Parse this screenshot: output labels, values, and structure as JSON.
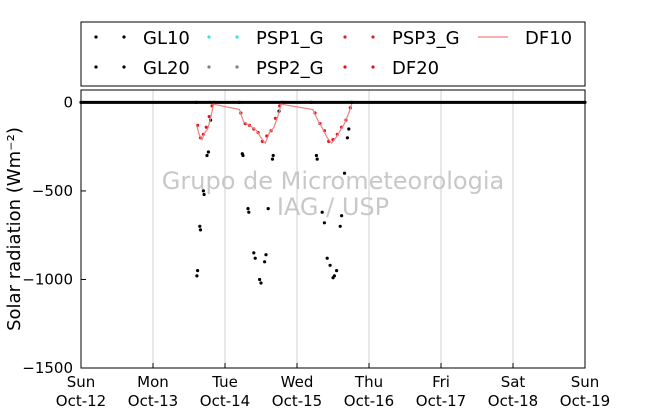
{
  "chart_data": {
    "type": "scatter",
    "ylabel": "Solar radiation (Wm⁻²)",
    "ylim": [
      -1500,
      70
    ],
    "xlim_days": [
      12,
      19
    ],
    "yticks": [
      0,
      -500,
      -1000,
      -1500
    ],
    "grid": "vertical",
    "legend_placement": "top (outside plot)",
    "x_tick_labels": [
      [
        "Sun",
        "Oct-12"
      ],
      [
        "Mon",
        "Oct-13"
      ],
      [
        "Tue",
        "Oct-14"
      ],
      [
        "Wed",
        "Oct-15"
      ],
      [
        "Thu",
        "Oct-16"
      ],
      [
        "Fri",
        "Oct-17"
      ],
      [
        "Sat",
        "Oct-18"
      ],
      [
        "Sun",
        "Oct-19"
      ]
    ],
    "watermark": [
      "Grupo de Micrometeorologia",
      "IAG / USP"
    ],
    "series": [
      {
        "name": "GL10",
        "style": "dots",
        "color": "#000000",
        "points": [
          [
            12.0,
            0
          ],
          [
            13.6,
            0
          ],
          [
            13.62,
            -950
          ],
          [
            13.65,
            -700
          ],
          [
            13.7,
            -500
          ],
          [
            13.75,
            -300
          ],
          [
            13.8,
            -100
          ],
          [
            13.85,
            0
          ],
          [
            14.2,
            0
          ],
          [
            14.25,
            -300
          ],
          [
            14.32,
            -600
          ],
          [
            14.4,
            -850
          ],
          [
            14.48,
            -1000
          ],
          [
            14.55,
            -900
          ],
          [
            14.6,
            -600
          ],
          [
            14.67,
            -300
          ],
          [
            14.75,
            -50
          ],
          [
            14.8,
            0
          ],
          [
            15.2,
            0
          ],
          [
            15.27,
            -300
          ],
          [
            15.35,
            -620
          ],
          [
            15.42,
            -880
          ],
          [
            15.5,
            -990
          ],
          [
            15.55,
            -950
          ],
          [
            15.6,
            -700
          ],
          [
            15.66,
            -400
          ],
          [
            15.72,
            -150
          ],
          [
            15.76,
            0
          ],
          [
            19.0,
            0
          ]
        ]
      },
      {
        "name": "GL20",
        "style": "dots",
        "color": "#000000",
        "points": [
          [
            13.61,
            -980
          ],
          [
            13.66,
            -720
          ],
          [
            13.71,
            -520
          ],
          [
            13.77,
            -280
          ],
          [
            14.24,
            -290
          ],
          [
            14.33,
            -620
          ],
          [
            14.42,
            -880
          ],
          [
            14.5,
            -1020
          ],
          [
            14.57,
            -860
          ],
          [
            14.66,
            -320
          ],
          [
            15.28,
            -320
          ],
          [
            15.38,
            -680
          ],
          [
            15.46,
            -920
          ],
          [
            15.52,
            -980
          ],
          [
            15.62,
            -640
          ],
          [
            15.7,
            -200
          ]
        ]
      },
      {
        "name": "PSP1_G",
        "style": "dots",
        "color": "#2ee6e6",
        "points": []
      },
      {
        "name": "PSP2_G",
        "style": "dots",
        "color": "#808080",
        "points": []
      },
      {
        "name": "PSP3_G",
        "style": "dots",
        "color": "#d62728",
        "points": []
      },
      {
        "name": "DF20",
        "style": "dots",
        "color": "#e0141e",
        "points": [
          [
            13.62,
            -130
          ],
          [
            13.66,
            -200
          ],
          [
            13.7,
            -180
          ],
          [
            13.74,
            -140
          ],
          [
            13.78,
            -80
          ],
          [
            13.82,
            -20
          ],
          [
            14.22,
            -60
          ],
          [
            14.28,
            -120
          ],
          [
            14.34,
            -130
          ],
          [
            14.4,
            -150
          ],
          [
            14.46,
            -170
          ],
          [
            14.52,
            -220
          ],
          [
            14.58,
            -190
          ],
          [
            14.64,
            -160
          ],
          [
            14.7,
            -90
          ],
          [
            14.76,
            -20
          ],
          [
            15.25,
            -60
          ],
          [
            15.32,
            -120
          ],
          [
            15.38,
            -160
          ],
          [
            15.44,
            -220
          ],
          [
            15.5,
            -210
          ],
          [
            15.56,
            -180
          ],
          [
            15.62,
            -140
          ],
          [
            15.68,
            -100
          ],
          [
            15.74,
            -30
          ]
        ]
      },
      {
        "name": "DF10",
        "style": "line",
        "color": "#f08080",
        "points": [
          [
            13.6,
            -120
          ],
          [
            13.64,
            -180
          ],
          [
            13.68,
            -210
          ],
          [
            13.72,
            -170
          ],
          [
            13.76,
            -150
          ],
          [
            13.8,
            -90
          ],
          [
            13.84,
            -10
          ],
          [
            14.2,
            -40
          ],
          [
            14.26,
            -110
          ],
          [
            14.32,
            -125
          ],
          [
            14.38,
            -140
          ],
          [
            14.44,
            -160
          ],
          [
            14.5,
            -200
          ],
          [
            14.56,
            -230
          ],
          [
            14.62,
            -170
          ],
          [
            14.68,
            -140
          ],
          [
            14.74,
            -70
          ],
          [
            14.78,
            -10
          ],
          [
            15.22,
            -40
          ],
          [
            15.3,
            -110
          ],
          [
            15.36,
            -150
          ],
          [
            15.42,
            -200
          ],
          [
            15.48,
            -230
          ],
          [
            15.54,
            -200
          ],
          [
            15.6,
            -160
          ],
          [
            15.66,
            -120
          ],
          [
            15.72,
            -60
          ],
          [
            15.76,
            -10
          ]
        ]
      }
    ]
  }
}
